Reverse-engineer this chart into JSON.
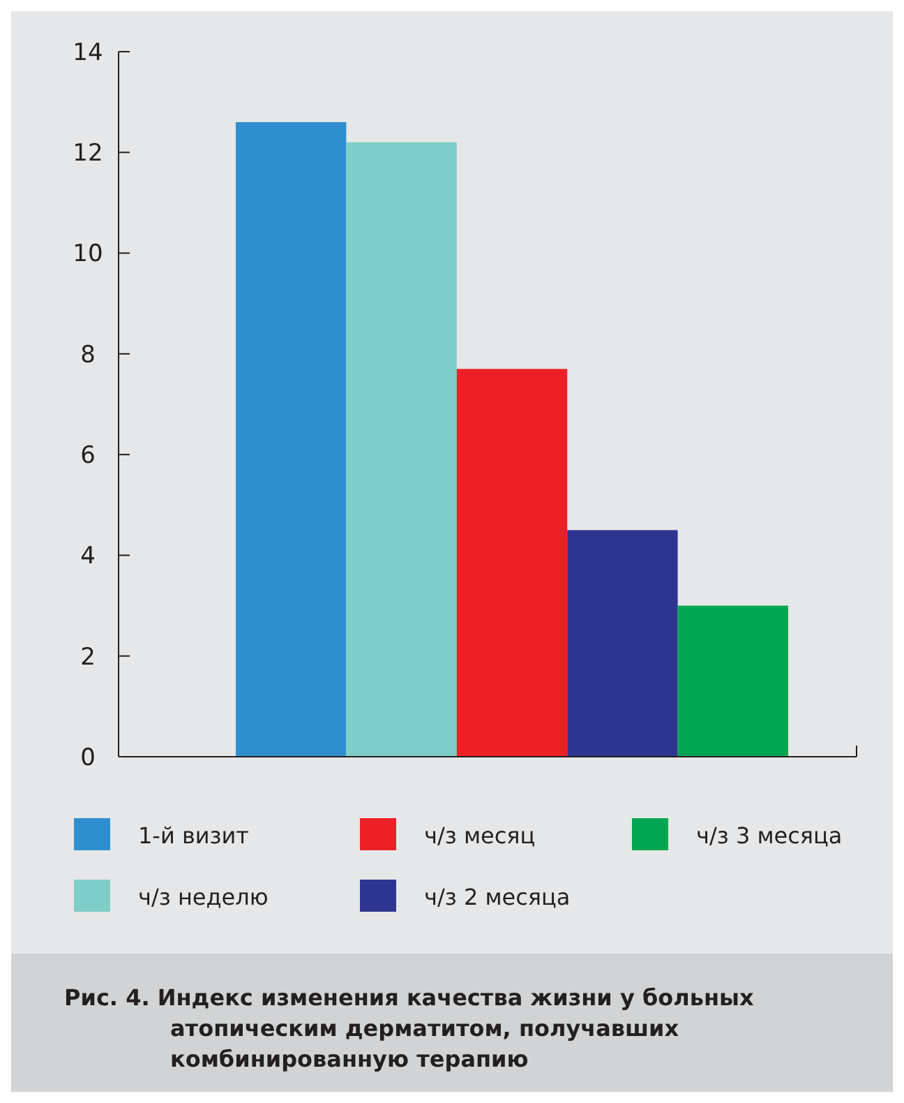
{
  "chart_data": {
    "type": "bar",
    "title": "Рис. 4. Индекс изменения качества жизни у больных атопическим дерматитом, получавших комбинированную терапию",
    "categories": [
      null
    ],
    "series": [
      {
        "name": "1-й визит",
        "color": "#2f8fce",
        "values": [
          12.6
        ]
      },
      {
        "name": "ч/з неделю",
        "color": "#7ecdc8",
        "values": [
          12.2
        ]
      },
      {
        "name": "ч/з месяц",
        "color": "#ec2127",
        "values": [
          7.7
        ]
      },
      {
        "name": "ч/з 2 месяца",
        "color": "#2e3591",
        "values": [
          4.5
        ]
      },
      {
        "name": "ч/з 3 месяца",
        "color": "#00a651",
        "values": [
          3.0
        ]
      }
    ],
    "ylim": [
      0,
      14
    ],
    "yticks": [
      0,
      2,
      4,
      6,
      8,
      10,
      12,
      14
    ],
    "legend": "bottom",
    "grid": false
  }
}
